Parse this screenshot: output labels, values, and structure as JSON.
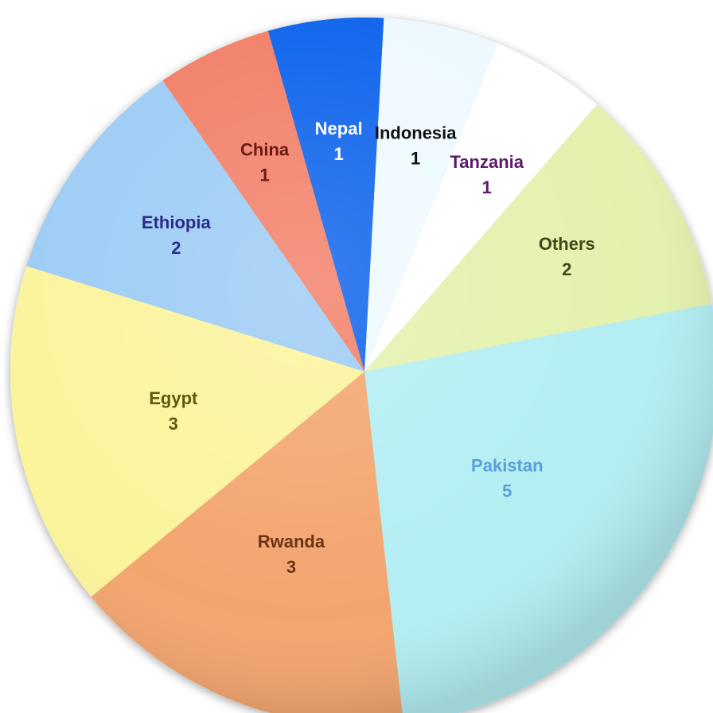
{
  "chart_data": {
    "type": "pie",
    "title": "",
    "slices": [
      {
        "label": "Nepal",
        "value": 1,
        "color": "#0a63ec",
        "label_color": "#ffffff"
      },
      {
        "label": "Indonesia",
        "value": 1,
        "color": "#eef9ff",
        "label_color": "#111111"
      },
      {
        "label": "Tanzania",
        "value": 1,
        "color": "#ffffff",
        "label_color": "#5a1a6a"
      },
      {
        "label": "Others",
        "value": 2,
        "color": "#e4f1ae",
        "label_color": "#3d4a1a"
      },
      {
        "label": "Pakistan",
        "value": 5,
        "color": "#b3eef3",
        "label_color": "#5b9fd6"
      },
      {
        "label": "Rwanda",
        "value": 3,
        "color": "#f3a56e",
        "label_color": "#6b3413"
      },
      {
        "label": "Egypt",
        "value": 3,
        "color": "#fbf49c",
        "label_color": "#5d5a12"
      },
      {
        "label": "Ethiopia",
        "value": 2,
        "color": "#9cccf5",
        "label_color": "#2a2a8e"
      },
      {
        "label": "China",
        "value": 1,
        "color": "#f27f68",
        "label_color": "#6b1a12"
      }
    ]
  }
}
